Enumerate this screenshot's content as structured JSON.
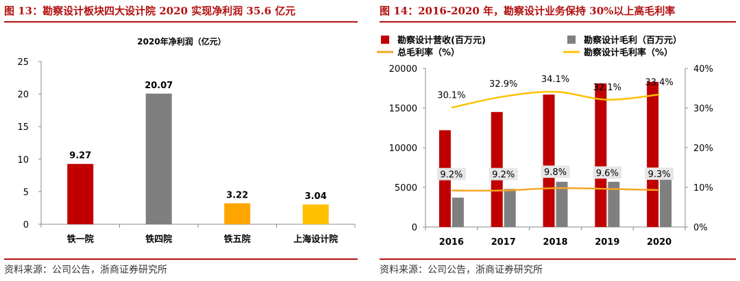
{
  "left": {
    "fig_title": "图 13：勘察设计板块四大设计院 2020 实现净利润 35.6 亿元",
    "source": "资料来源：公司公告，浙商证券研究所"
  },
  "right": {
    "fig_title": "图 14：2016-2020 年，勘察设计业务保持 30%以上高毛利率",
    "source": "资料来源：公司公告，浙商证券研究所"
  },
  "colors": {
    "title_red": "#b20f0f",
    "bar_red": "#c00000",
    "bar_gray": "#7f7f7f",
    "bar_orange": "#ffa500",
    "bar_yellow": "#ffc000",
    "line_orange": "#f5a623",
    "line_yellow": "#ffc000"
  },
  "chart_data": [
    {
      "type": "bar",
      "title": "2020年净利润（亿元）",
      "categories": [
        "铁一院",
        "铁四院",
        "铁五院",
        "上海设计院"
      ],
      "values": [
        9.27,
        20.07,
        3.22,
        3.04
      ],
      "value_labels": [
        "9.27",
        "20.07",
        "3.22",
        "3.04"
      ],
      "bar_colors": [
        "#c00000",
        "#7f7f7f",
        "#ffa500",
        "#ffc000"
      ],
      "ylim": [
        0,
        25
      ],
      "yticks": [
        0,
        5,
        10,
        15,
        20,
        25
      ],
      "ytick_labels": [
        "0",
        "5",
        "10",
        "15",
        "20",
        "25"
      ],
      "xlabel": "",
      "ylabel": ""
    },
    {
      "type": "bar+line",
      "title": "",
      "categories": [
        "2016",
        "2017",
        "2018",
        "2019",
        "2020"
      ],
      "series": [
        {
          "name": "勘察设计营收(百万元)",
          "kind": "bar",
          "axis": "left",
          "color": "#c00000",
          "values": [
            12200,
            14500,
            16700,
            18100,
            18300
          ]
        },
        {
          "name": "勘察设计毛利（百万元）",
          "kind": "bar",
          "axis": "left",
          "color": "#7f7f7f",
          "values": [
            3700,
            4800,
            5700,
            5700,
            6200
          ]
        },
        {
          "name": "总毛利率（%）",
          "kind": "line",
          "axis": "right",
          "color": "#f5a623",
          "values": [
            9.2,
            9.2,
            9.8,
            9.6,
            9.3
          ],
          "labels": [
            "9.2%",
            "9.2%",
            "9.8%",
            "9.6%",
            "9.3%"
          ]
        },
        {
          "name": "勘察设计毛利率（%）",
          "kind": "line",
          "axis": "right",
          "color": "#ffc000",
          "values": [
            30.1,
            32.9,
            34.1,
            32.1,
            33.4
          ],
          "labels": [
            "30.1%",
            "32.9%",
            "34.1%",
            "32.1%",
            "33.4%"
          ]
        }
      ],
      "y_left": {
        "range": [
          0,
          20000
        ],
        "ticks": [
          0,
          5000,
          10000,
          15000,
          20000
        ],
        "tick_labels": [
          "0",
          "5000",
          "10000",
          "15000",
          "20000"
        ]
      },
      "y_right": {
        "range": [
          0,
          40
        ],
        "ticks": [
          0,
          10,
          20,
          30,
          40
        ],
        "tick_labels": [
          "0%",
          "10%",
          "20%",
          "30%",
          "40%"
        ]
      },
      "legend_position": "top"
    }
  ]
}
